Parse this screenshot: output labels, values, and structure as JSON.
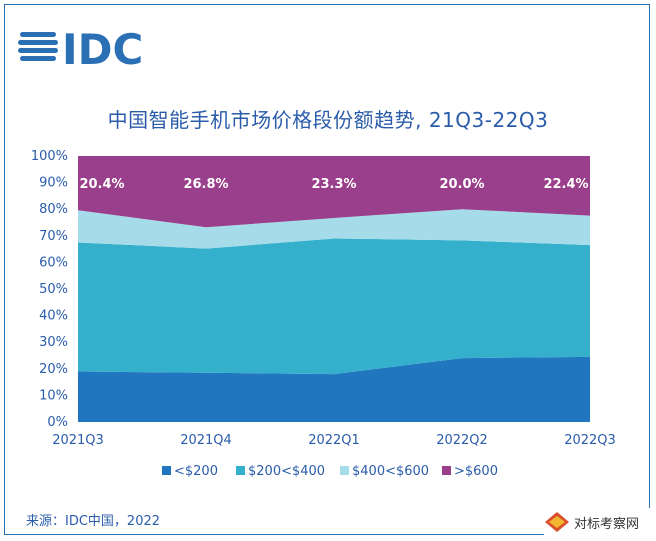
{
  "brand": {
    "logo_text": "IDC",
    "colors": {
      "brand_blue": "#2b6fb5"
    }
  },
  "source": {
    "text": "来源：IDC中国，2022"
  },
  "watermark": {
    "text": "对标考察网"
  },
  "chart_data": {
    "type": "area",
    "stacked": true,
    "title": "中国智能手机市场价格段份额趋势, 21Q3-22Q3",
    "xlabel": "",
    "ylabel": "",
    "categories": [
      "2021Q3",
      "2021Q4",
      "2022Q1",
      "2022Q2",
      "2022Q3"
    ],
    "ylim": [
      0,
      100
    ],
    "yticks": [
      "0%",
      "10%",
      "20%",
      "30%",
      "40%",
      "50%",
      "60%",
      "70%",
      "80%",
      "90%",
      "100%"
    ],
    "grid": false,
    "legend_position": "bottom",
    "series": [
      {
        "name": "<$200",
        "color": "#2176c0",
        "values": [
          19.0,
          18.5,
          18.0,
          24.0,
          24.5
        ]
      },
      {
        "name": "$200<$400",
        "color": "#35b0cc",
        "values": [
          48.5,
          46.7,
          51.0,
          44.3,
          42.0
        ]
      },
      {
        "name": "$400<$600",
        "color": "#a6dce9",
        "values": [
          12.1,
          8.0,
          7.7,
          11.7,
          11.1
        ]
      },
      {
        "name": ">$600",
        "color": "#9a3f8b",
        "values": [
          20.4,
          26.8,
          23.3,
          20.0,
          22.4
        ]
      }
    ],
    "data_labels": [
      "20.4%",
      "26.8%",
      "23.3%",
      "20.0%",
      "22.4%"
    ]
  }
}
